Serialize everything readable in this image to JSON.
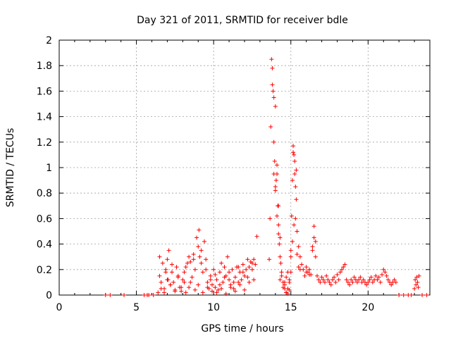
{
  "chart_data": {
    "type": "scatter",
    "title": "Day 321 of 2011, SRMTID for receiver bdle",
    "xlabel": "GPS time / hours",
    "ylabel": "SRMTID / TECUs",
    "xlim": [
      0,
      24
    ],
    "ylim": [
      0,
      2
    ],
    "xticks": [
      0,
      5,
      10,
      15,
      20
    ],
    "yticks": [
      0,
      0.2,
      0.4,
      0.6,
      0.8,
      1,
      1.2,
      1.4,
      1.6,
      1.8,
      2
    ],
    "ytick_labels": [
      "0",
      "0.2",
      "0.4",
      "0.6",
      "0.8",
      "1",
      "1.2",
      "1.4",
      "1.6",
      "1.8",
      "2"
    ],
    "grid": true,
    "marker": "+",
    "color": "#ff0000",
    "series": [
      {
        "name": "SRMTID",
        "x": [
          3.0,
          3.3,
          4.2,
          5.5,
          5.7,
          5.8,
          6.1,
          6.4,
          6.5,
          6.6,
          6.7,
          6.8,
          6.9,
          7.0,
          7.05,
          7.1,
          7.2,
          7.3,
          7.4,
          7.5,
          7.6,
          7.7,
          7.8,
          7.9,
          8.0,
          8.1,
          8.2,
          8.3,
          8.4,
          8.5,
          8.6,
          8.7,
          8.8,
          8.9,
          9.0,
          9.05,
          9.1,
          9.2,
          9.3,
          9.4,
          9.5,
          9.6,
          9.7,
          9.8,
          9.9,
          10.0,
          10.1,
          10.2,
          10.3,
          10.4,
          10.5,
          10.6,
          10.7,
          10.8,
          10.9,
          11.0,
          11.1,
          11.2,
          11.3,
          11.4,
          11.5,
          11.6,
          11.7,
          11.8,
          11.9,
          12.0,
          12.1,
          12.2,
          12.3,
          12.4,
          12.5,
          12.6,
          12.7,
          12.8,
          6.6,
          6.8,
          7.0,
          7.2,
          7.5,
          7.9,
          8.2,
          8.5,
          8.8,
          9.0,
          9.3,
          9.6,
          9.9,
          10.2,
          10.5,
          10.8,
          11.1,
          11.4,
          11.7,
          12.0,
          12.3,
          12.6,
          6.5,
          6.9,
          7.3,
          7.7,
          8.1,
          8.4,
          8.7,
          9.2,
          9.5,
          9.8,
          10.1,
          10.4,
          10.7,
          11.0,
          11.3,
          11.6,
          11.9,
          12.2,
          12.5,
          13.6,
          13.65,
          13.7,
          13.75,
          13.8,
          13.85,
          13.9,
          13.95,
          14.0,
          14.05,
          14.1,
          14.15,
          14.2,
          14.25,
          14.3,
          14.35,
          14.4,
          14.5,
          14.6,
          14.7,
          14.8,
          14.9,
          15.0,
          15.05,
          15.1,
          15.15,
          15.2,
          15.25,
          15.3,
          15.35,
          15.4,
          15.5,
          15.6,
          15.7,
          15.8,
          13.9,
          14.0,
          14.1,
          14.2,
          14.4,
          14.6,
          14.8,
          15.0,
          15.1,
          15.2,
          15.3,
          15.4,
          15.5,
          14.3,
          14.5,
          14.7,
          14.9,
          15.0,
          15.6,
          16.0,
          16.2,
          13.8,
          13.9,
          14.0,
          14.1,
          14.2,
          14.3,
          15.15,
          15.25,
          15.35,
          14.6,
          14.7,
          14.8,
          14.9,
          15.9,
          16.0,
          16.1,
          16.2,
          16.3,
          16.4,
          16.5,
          16.6,
          16.7,
          16.8,
          16.9,
          17.0,
          17.1,
          17.2,
          17.3,
          17.4,
          17.5,
          17.6,
          17.7,
          17.8,
          17.9,
          18.0,
          18.1,
          18.2,
          18.3,
          18.4,
          18.5,
          18.6,
          18.7,
          18.8,
          18.9,
          19.0,
          19.1,
          19.2,
          19.3,
          19.4,
          19.5,
          19.6,
          19.7,
          19.8,
          19.9,
          20.0,
          20.1,
          20.2,
          20.3,
          20.4,
          20.5,
          20.6,
          20.7,
          20.8,
          20.9,
          21.0,
          21.1,
          21.2,
          21.3,
          21.4,
          21.5,
          21.6,
          21.7,
          21.8,
          16.4,
          16.5,
          16.6,
          22.0,
          22.3,
          22.6,
          22.8,
          23.0,
          23.05,
          23.1,
          23.15,
          23.2,
          23.25,
          23.3,
          23.5,
          23.8
        ],
        "y": [
          0,
          0,
          0,
          0,
          0,
          0,
          0,
          0.02,
          0.15,
          0.1,
          0.25,
          0.05,
          0.2,
          0.28,
          0.12,
          0.35,
          0.08,
          0.18,
          0.1,
          0.04,
          0.22,
          0.15,
          0.06,
          0.03,
          0.12,
          0.18,
          0.22,
          0.25,
          0.3,
          0.26,
          0.14,
          0.32,
          0.2,
          0.45,
          0.38,
          0.51,
          0.3,
          0.25,
          0.18,
          0.42,
          0.28,
          0.1,
          0.05,
          0.15,
          0.08,
          0.2,
          0.06,
          0.12,
          0.04,
          0.18,
          0.25,
          0.1,
          0.22,
          0.15,
          0.3,
          0.12,
          0.08,
          0.2,
          0.05,
          0.14,
          0.22,
          0.1,
          0.18,
          0.12,
          0.24,
          0.15,
          0.2,
          0.28,
          0.22,
          0.26,
          0.25,
          0.28,
          0.24,
          0.46,
          0.05,
          0.02,
          0.12,
          0.08,
          0.03,
          0.06,
          0.02,
          0.1,
          0.04,
          0.08,
          0.02,
          0.06,
          0.03,
          0.02,
          0.05,
          0.01,
          0.06,
          0.03,
          0.08,
          0.04,
          0.1,
          0.12,
          0.3,
          0.18,
          0.24,
          0.14,
          0.1,
          0.06,
          0.28,
          0.35,
          0.2,
          0.12,
          0.16,
          0.08,
          0.14,
          0.18,
          0.1,
          0.22,
          0.18,
          0.14,
          0.2,
          0.28,
          0.6,
          1.32,
          1.85,
          1.78,
          1.6,
          1.2,
          1.05,
          0.85,
          0.9,
          1.02,
          0.7,
          0.55,
          0.4,
          0.3,
          0.25,
          0.18,
          0.1,
          0.05,
          0.02,
          0.01,
          0.04,
          0.35,
          0.62,
          0.9,
          1.17,
          1.1,
          0.95,
          0.85,
          0.75,
          0.5,
          0.38,
          0.3,
          0.24,
          0.2,
          0.95,
          0.82,
          0.62,
          0.48,
          0.15,
          0.08,
          0.05,
          0.3,
          0.42,
          0.55,
          0.6,
          0.32,
          0.22,
          0.12,
          0.06,
          0.02,
          0.1,
          0.18,
          0.2,
          0.18,
          0.16,
          1.65,
          1.55,
          1.48,
          0.95,
          0.7,
          0.45,
          1.12,
          1.05,
          0.98,
          0.1,
          0.14,
          0.18,
          0.12,
          0.15,
          0.22,
          0.18,
          0.2,
          0.16,
          0.38,
          0.54,
          0.42,
          0.15,
          0.12,
          0.1,
          0.14,
          0.12,
          0.1,
          0.15,
          0.12,
          0.1,
          0.08,
          0.12,
          0.14,
          0.1,
          0.16,
          0.12,
          0.18,
          0.2,
          0.22,
          0.24,
          0.12,
          0.1,
          0.08,
          0.12,
          0.1,
          0.14,
          0.12,
          0.1,
          0.12,
          0.14,
          0.1,
          0.12,
          0.1,
          0.08,
          0.1,
          0.12,
          0.14,
          0.1,
          0.12,
          0.15,
          0.12,
          0.14,
          0.1,
          0.16,
          0.2,
          0.18,
          0.15,
          0.12,
          0.1,
          0.08,
          0.1,
          0.12,
          0.1,
          0.35,
          0.45,
          0.3,
          0,
          0,
          0,
          0,
          0.05,
          0.12,
          0.08,
          0.14,
          0.1,
          0.06,
          0.15,
          0,
          0
        ]
      }
    ]
  }
}
